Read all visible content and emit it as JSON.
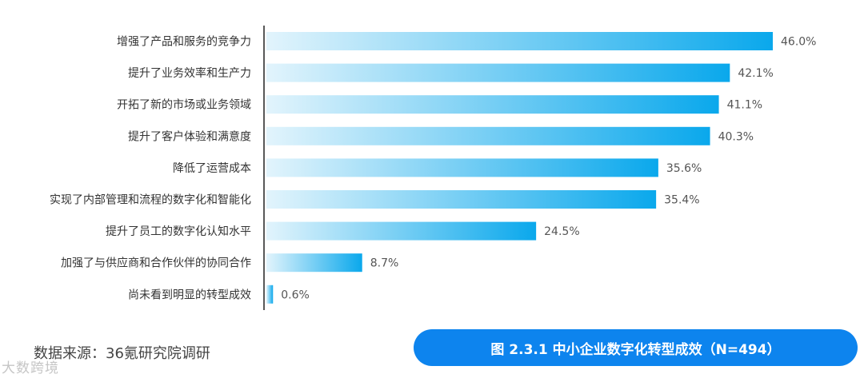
{
  "chart_data": {
    "type": "bar",
    "orientation": "horizontal",
    "categories": [
      "增强了产品和服务的竞争力",
      "提升了业务效率和生产力",
      "开拓了新的市场或业务领域",
      "提升了客户体验和满意度",
      "降低了运营成本",
      "实现了内部管理和流程的数字化和智能化",
      "提升了员工的数字化认知水平",
      "加强了与供应商和合作伙伴的协同合作",
      "尚未看到明显的转型成效"
    ],
    "values": [
      46.0,
      42.1,
      41.1,
      40.3,
      35.6,
      35.4,
      24.5,
      8.7,
      0.6
    ],
    "value_labels": [
      "46.0%",
      "42.1%",
      "41.1%",
      "40.3%",
      "35.6%",
      "35.4%",
      "24.5%",
      "8.7%",
      "0.6%"
    ],
    "unit": "%",
    "xlim": [
      0,
      46.0
    ],
    "grid": false,
    "bar_gradient": [
      "#e2f4fc",
      "#0aa8ec"
    ],
    "title": "图 2.3.1 中小企业数字化转型成效（N=494）"
  },
  "footer": {
    "source": "数据来源：36氪研究院调研",
    "watermark": "大数跨境"
  },
  "colors": {
    "badge": "#0d84ee",
    "axis": "#222222"
  }
}
